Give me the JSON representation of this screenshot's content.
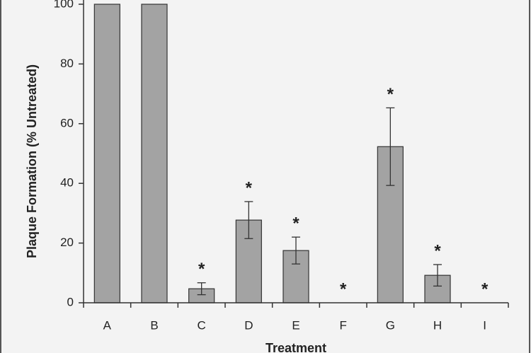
{
  "chart_data": {
    "type": "bar",
    "y_label": "Plaque Formation (% Untreated)",
    "x_label": "Treatment",
    "categories": [
      "A",
      "B",
      "C",
      "D",
      "E",
      "F",
      "G",
      "H",
      "I"
    ],
    "values": [
      100,
      100,
      4.7,
      27.7,
      17.5,
      0,
      52.3,
      9.2,
      0
    ],
    "errors": [
      null,
      null,
      2,
      6.2,
      4.5,
      null,
      13,
      3.6,
      null
    ],
    "significance": [
      null,
      null,
      "*",
      "*",
      "*",
      "*",
      "*",
      "*",
      "*"
    ],
    "color": "#a3a3a3",
    "ylim": [
      0,
      100
    ],
    "yticks": [
      0,
      20,
      40,
      60,
      80,
      100
    ],
    "grid": false
  }
}
